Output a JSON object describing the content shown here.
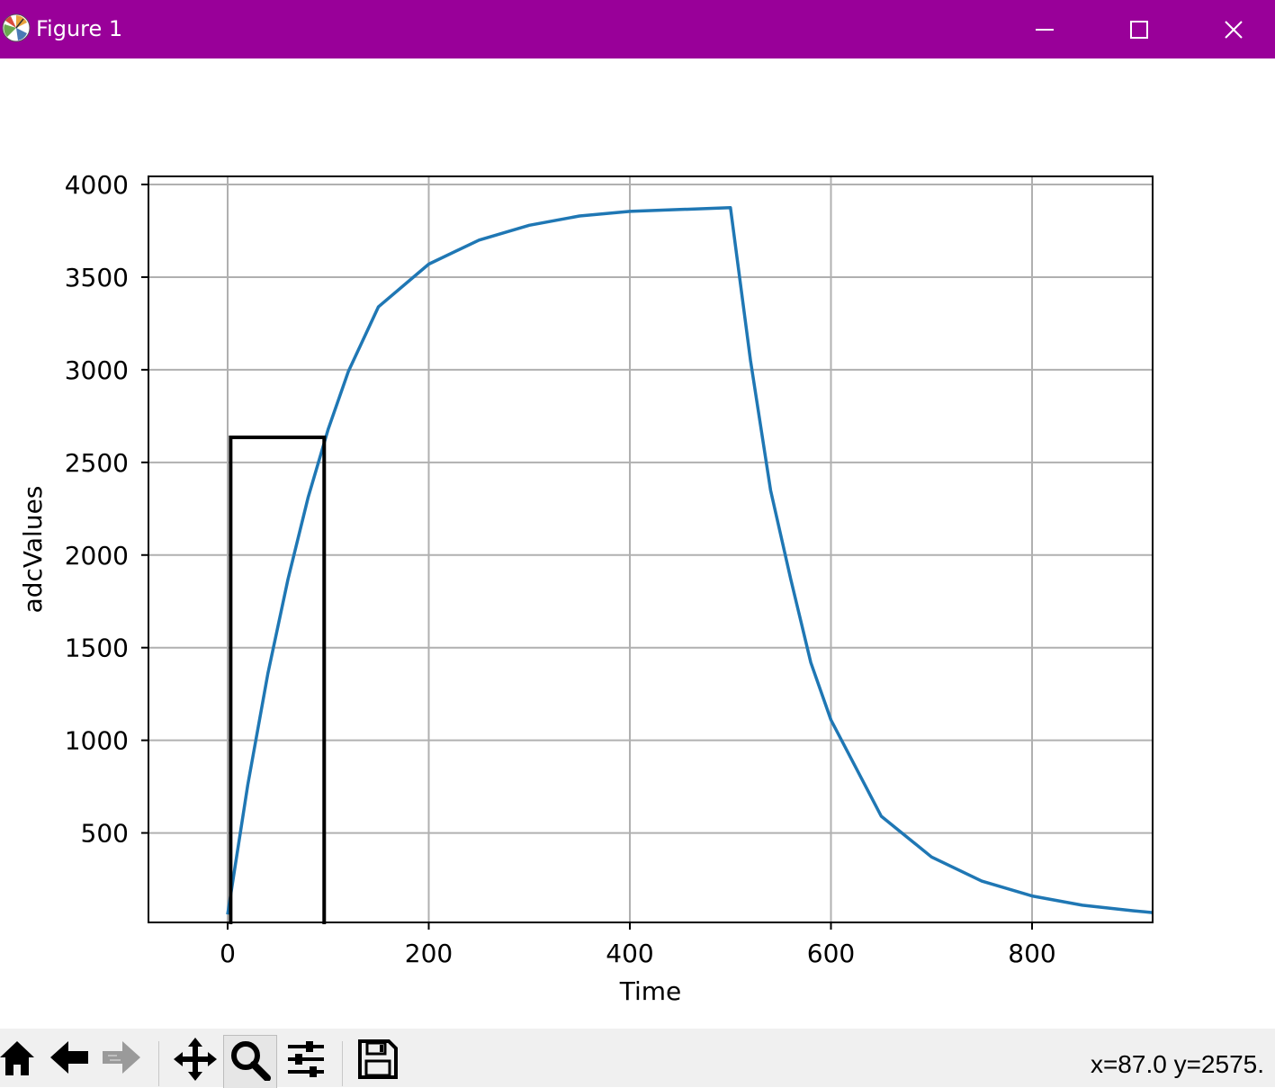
{
  "window": {
    "title": "Figure 1",
    "controls": [
      "minimize",
      "maximize",
      "close"
    ]
  },
  "toolbar": {
    "buttons": [
      {
        "name": "home",
        "icon": "home-icon"
      },
      {
        "name": "back",
        "icon": "arrow-left-icon"
      },
      {
        "name": "forward",
        "icon": "arrow-right-icon",
        "enabled": false
      },
      {
        "name": "pan",
        "icon": "move-icon"
      },
      {
        "name": "zoom",
        "icon": "magnifier-icon",
        "active": true
      },
      {
        "name": "configure-subplots",
        "icon": "sliders-icon"
      },
      {
        "name": "save",
        "icon": "floppy-icon"
      }
    ],
    "coords_text": "x=87.0 y=2575."
  },
  "chart_data": {
    "type": "line",
    "title": "",
    "xlabel": "Time",
    "ylabel": "adcValues",
    "xlim": [
      -80,
      920
    ],
    "ylim": [
      20,
      4050
    ],
    "grid": true,
    "xticks": [
      0,
      200,
      400,
      600,
      800
    ],
    "yticks": [
      500,
      1000,
      1500,
      2000,
      2500,
      3000,
      3500,
      4000
    ],
    "xtick_labels": [
      "0",
      "200",
      "400",
      "600",
      "800"
    ],
    "ytick_labels": [
      "500",
      "1000",
      "1500",
      "2000",
      "2500",
      "3000",
      "3500",
      "4000"
    ],
    "line_color": "#1f77b4",
    "series": [
      {
        "x": [
          0,
          20,
          40,
          60,
          80,
          100,
          120,
          150,
          200,
          250,
          300,
          350,
          400,
          450,
          500,
          520,
          540,
          560,
          580,
          600,
          650,
          700,
          750,
          800,
          850,
          900,
          920
        ],
        "values": [
          60,
          760,
          1360,
          1870,
          2310,
          2680,
          2990,
          3340,
          3570,
          3700,
          3780,
          3830,
          3855,
          3865,
          3875,
          3050,
          2350,
          1870,
          1420,
          1110,
          590,
          370,
          240,
          160,
          110,
          80,
          70
        ]
      }
    ],
    "zoom_rectangle": {
      "x": [
        3,
        96
      ],
      "y": [
        0,
        2635
      ]
    },
    "colors": {
      "grid": "#b0b0b0",
      "axes": "#000000",
      "zoom_box": "#000000"
    }
  }
}
